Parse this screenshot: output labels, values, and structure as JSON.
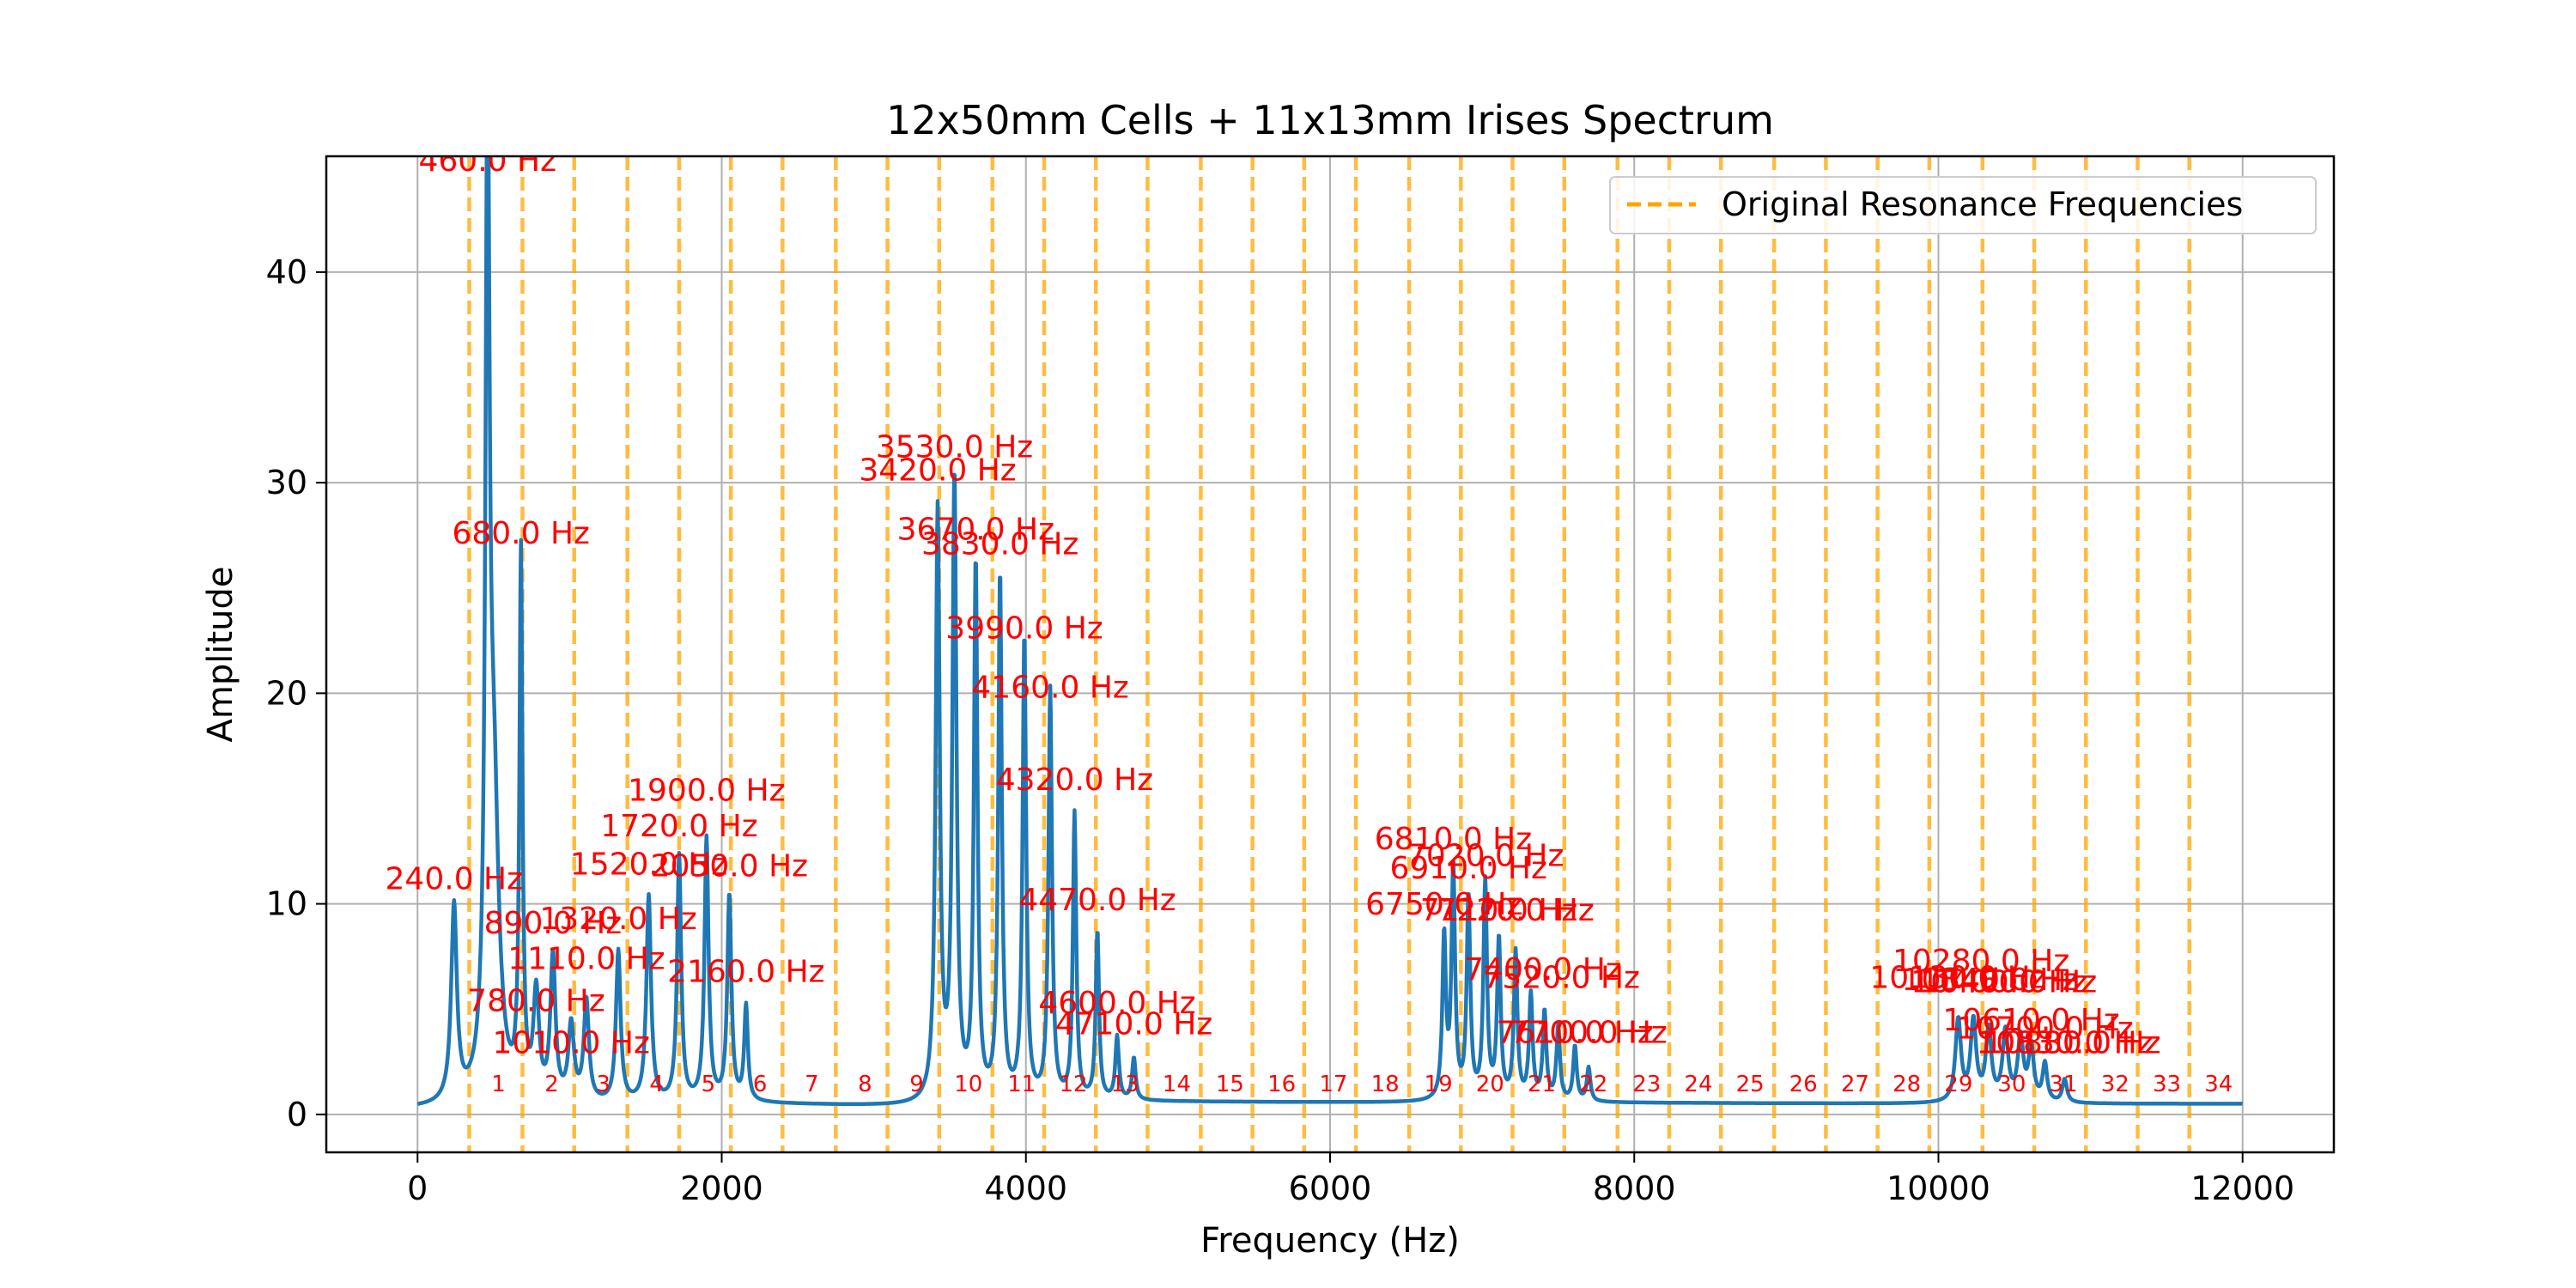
{
  "chart_data": {
    "type": "line",
    "title": "12x50mm Cells + 11x13mm Irises Spectrum",
    "xlabel": "Frequency (Hz)",
    "ylabel": "Amplitude",
    "xlim": [
      -600,
      12600
    ],
    "ylim": [
      -1.8,
      45.5
    ],
    "xticks": [
      0,
      2000,
      4000,
      6000,
      8000,
      10000,
      12000
    ],
    "yticks": [
      0,
      10,
      20,
      30,
      40
    ],
    "grid": true,
    "legend": {
      "position": "top-right",
      "entries": [
        "Original Resonance Frequencies"
      ]
    },
    "colors": {
      "spectrum": "#1f77b4",
      "resonance": "#ffa500",
      "annotation": "#ff0000",
      "grid": "#b0b0b0"
    },
    "resonance_lines": [
      {
        "x": 340,
        "label": "1"
      },
      {
        "x": 690,
        "label": "2"
      },
      {
        "x": 1030,
        "label": "3"
      },
      {
        "x": 1380,
        "label": "4"
      },
      {
        "x": 1720,
        "label": "5"
      },
      {
        "x": 2060,
        "label": "6"
      },
      {
        "x": 2400,
        "label": "7"
      },
      {
        "x": 2750,
        "label": "8"
      },
      {
        "x": 3090,
        "label": "9"
      },
      {
        "x": 3430,
        "label": "10"
      },
      {
        "x": 3780,
        "label": "11"
      },
      {
        "x": 4120,
        "label": "12"
      },
      {
        "x": 4460,
        "label": "13"
      },
      {
        "x": 4800,
        "label": "14"
      },
      {
        "x": 5150,
        "label": "15"
      },
      {
        "x": 5490,
        "label": "16"
      },
      {
        "x": 5830,
        "label": "17"
      },
      {
        "x": 6170,
        "label": "18"
      },
      {
        "x": 6520,
        "label": "19"
      },
      {
        "x": 6860,
        "label": "20"
      },
      {
        "x": 7200,
        "label": "21"
      },
      {
        "x": 7540,
        "label": "22"
      },
      {
        "x": 7890,
        "label": "23"
      },
      {
        "x": 8230,
        "label": "24"
      },
      {
        "x": 8570,
        "label": "25"
      },
      {
        "x": 8920,
        "label": "26"
      },
      {
        "x": 9260,
        "label": "27"
      },
      {
        "x": 9600,
        "label": "28"
      },
      {
        "x": 9940,
        "label": "29"
      },
      {
        "x": 10290,
        "label": "30"
      },
      {
        "x": 10630,
        "label": "31"
      },
      {
        "x": 10970,
        "label": "32"
      },
      {
        "x": 11310,
        "label": "33"
      },
      {
        "x": 11650,
        "label": "34"
      }
    ],
    "baseline": [
      {
        "x": 0,
        "y": 0.25
      },
      {
        "x": 2180,
        "y": 0.5
      },
      {
        "x": 3300,
        "y": 0.35
      },
      {
        "x": 4700,
        "y": 0.6
      },
      {
        "x": 6700,
        "y": 0.55
      },
      {
        "x": 7730,
        "y": 0.55
      },
      {
        "x": 10000,
        "y": 0.5
      },
      {
        "x": 10950,
        "y": 0.5
      },
      {
        "x": 12000,
        "y": 0.5
      }
    ],
    "series": [
      {
        "peaks": [
          {
            "f": 240,
            "a": 9.3,
            "w": 22
          },
          {
            "f": 460,
            "a": 43.4,
            "w": 16
          },
          {
            "f": 500,
            "a": 14.0,
            "w": 40
          },
          {
            "f": 680,
            "a": 25.7,
            "w": 12
          },
          {
            "f": 780,
            "a": 5.0,
            "w": 22
          },
          {
            "f": 890,
            "a": 6.8,
            "w": 20
          },
          {
            "f": 1010,
            "a": 3.6,
            "w": 22
          },
          {
            "f": 1110,
            "a": 4.8,
            "w": 20
          },
          {
            "f": 1320,
            "a": 7.2,
            "w": 18
          },
          {
            "f": 1520,
            "a": 9.8,
            "w": 18
          },
          {
            "f": 1720,
            "a": 11.7,
            "w": 16
          },
          {
            "f": 1900,
            "a": 12.5,
            "w": 16
          },
          {
            "f": 2050,
            "a": 9.8,
            "w": 16
          },
          {
            "f": 2160,
            "a": 4.5,
            "w": 14
          },
          {
            "f": 3420,
            "a": 28.0,
            "w": 16
          },
          {
            "f": 3530,
            "a": 29.5,
            "w": 16
          },
          {
            "f": 3670,
            "a": 25.5,
            "w": 14
          },
          {
            "f": 3830,
            "a": 25.0,
            "w": 14
          },
          {
            "f": 3990,
            "a": 22.0,
            "w": 14
          },
          {
            "f": 4160,
            "a": 19.5,
            "w": 14
          },
          {
            "f": 4320,
            "a": 13.6,
            "w": 13
          },
          {
            "f": 4470,
            "a": 8.0,
            "w": 13
          },
          {
            "f": 4600,
            "a": 3.0,
            "w": 14
          },
          {
            "f": 4710,
            "a": 2.0,
            "w": 14
          },
          {
            "f": 6750,
            "a": 7.7,
            "w": 14
          },
          {
            "f": 6810,
            "a": 11.0,
            "w": 14
          },
          {
            "f": 6910,
            "a": 9.6,
            "w": 14
          },
          {
            "f": 7020,
            "a": 10.3,
            "w": 14
          },
          {
            "f": 7110,
            "a": 7.6,
            "w": 14
          },
          {
            "f": 7220,
            "a": 7.0,
            "w": 14
          },
          {
            "f": 7320,
            "a": 5.0,
            "w": 14
          },
          {
            "f": 7410,
            "a": 4.2,
            "w": 14
          },
          {
            "f": 7500,
            "a": 3.5,
            "w": 14
          },
          {
            "f": 7610,
            "a": 2.6,
            "w": 14
          },
          {
            "f": 7700,
            "a": 1.6,
            "w": 14
          },
          {
            "f": 10130,
            "a": 3.9,
            "w": 22
          },
          {
            "f": 10230,
            "a": 3.8,
            "w": 22
          },
          {
            "f": 10330,
            "a": 3.4,
            "w": 22
          },
          {
            "f": 10440,
            "a": 3.3,
            "w": 22
          },
          {
            "f": 10540,
            "a": 3.0,
            "w": 22
          },
          {
            "f": 10610,
            "a": 2.6,
            "w": 20
          },
          {
            "f": 10700,
            "a": 1.8,
            "w": 18
          },
          {
            "f": 10830,
            "a": 1.1,
            "w": 18
          }
        ]
      }
    ],
    "annotations": [
      {
        "text": "460.0 Hz",
        "x": 460,
        "y": 44.8
      },
      {
        "text": "680.0 Hz",
        "x": 680,
        "y": 27.1
      },
      {
        "text": "240.0 Hz",
        "x": 240,
        "y": 10.7
      },
      {
        "text": "890.0 Hz",
        "x": 890,
        "y": 8.6
      },
      {
        "text": "1320.0 Hz",
        "x": 1320,
        "y": 8.8
      },
      {
        "text": "1110.0 Hz",
        "x": 1110,
        "y": 6.9
      },
      {
        "text": "780.0 Hz",
        "x": 780,
        "y": 4.9
      },
      {
        "text": "1010.0 Hz",
        "x": 1010,
        "y": 2.9
      },
      {
        "text": "1900.0 Hz",
        "x": 1900,
        "y": 14.9
      },
      {
        "text": "1720.0 Hz",
        "x": 1720,
        "y": 13.2
      },
      {
        "text": "1520.0 Hz",
        "x": 1520,
        "y": 11.4
      },
      {
        "text": "2050.0 Hz",
        "x": 2050,
        "y": 11.3
      },
      {
        "text": "2160.0 Hz",
        "x": 2160,
        "y": 6.3
      },
      {
        "text": "3530.0 Hz",
        "x": 3530,
        "y": 31.2
      },
      {
        "text": "3420.0 Hz",
        "x": 3420,
        "y": 30.1
      },
      {
        "text": "3670.0 Hz",
        "x": 3670,
        "y": 27.3
      },
      {
        "text": "3830.0 Hz",
        "x": 3830,
        "y": 26.6
      },
      {
        "text": "3990.0 Hz",
        "x": 3990,
        "y": 22.6
      },
      {
        "text": "4160.0 Hz",
        "x": 4160,
        "y": 19.8
      },
      {
        "text": "4320.0 Hz",
        "x": 4320,
        "y": 15.4
      },
      {
        "text": "4470.0 Hz",
        "x": 4470,
        "y": 9.7
      },
      {
        "text": "4600.0 Hz",
        "x": 4600,
        "y": 4.8
      },
      {
        "text": "4710.0 Hz",
        "x": 4710,
        "y": 3.8
      },
      {
        "text": "6810.0 Hz",
        "x": 6810,
        "y": 12.6
      },
      {
        "text": "7020.0 Hz",
        "x": 7020,
        "y": 11.8
      },
      {
        "text": "6910.0 Hz",
        "x": 6910,
        "y": 11.2
      },
      {
        "text": "6750.0 Hz",
        "x": 6750,
        "y": 9.5
      },
      {
        "text": "7110.0 Hz",
        "x": 7110,
        "y": 9.2
      },
      {
        "text": "7220.0 Hz",
        "x": 7220,
        "y": 9.2
      },
      {
        "text": "7400.0 Hz",
        "x": 7400,
        "y": 6.4
      },
      {
        "text": "7520.0 Hz",
        "x": 7520,
        "y": 6.0
      },
      {
        "text": "7610.0 Hz",
        "x": 7610,
        "y": 3.4
      },
      {
        "text": "7700.0 Hz",
        "x": 7700,
        "y": 3.4
      },
      {
        "text": "10280.0 Hz",
        "x": 10280,
        "y": 6.8
      },
      {
        "text": "10130.0 Hz",
        "x": 10130,
        "y": 6.0
      },
      {
        "text": "10340.0 Hz",
        "x": 10340,
        "y": 5.9
      },
      {
        "text": "10400.0 Hz",
        "x": 10400,
        "y": 5.8
      },
      {
        "text": "10460.0 Hz",
        "x": 10460,
        "y": 5.8
      },
      {
        "text": "10610.0 Hz",
        "x": 10610,
        "y": 4.0
      },
      {
        "text": "10700.0 Hz",
        "x": 10700,
        "y": 3.6
      },
      {
        "text": "10830.0 Hz",
        "x": 10830,
        "y": 2.9
      },
      {
        "text": "10880.0 Hz",
        "x": 10880,
        "y": 2.9
      }
    ]
  }
}
